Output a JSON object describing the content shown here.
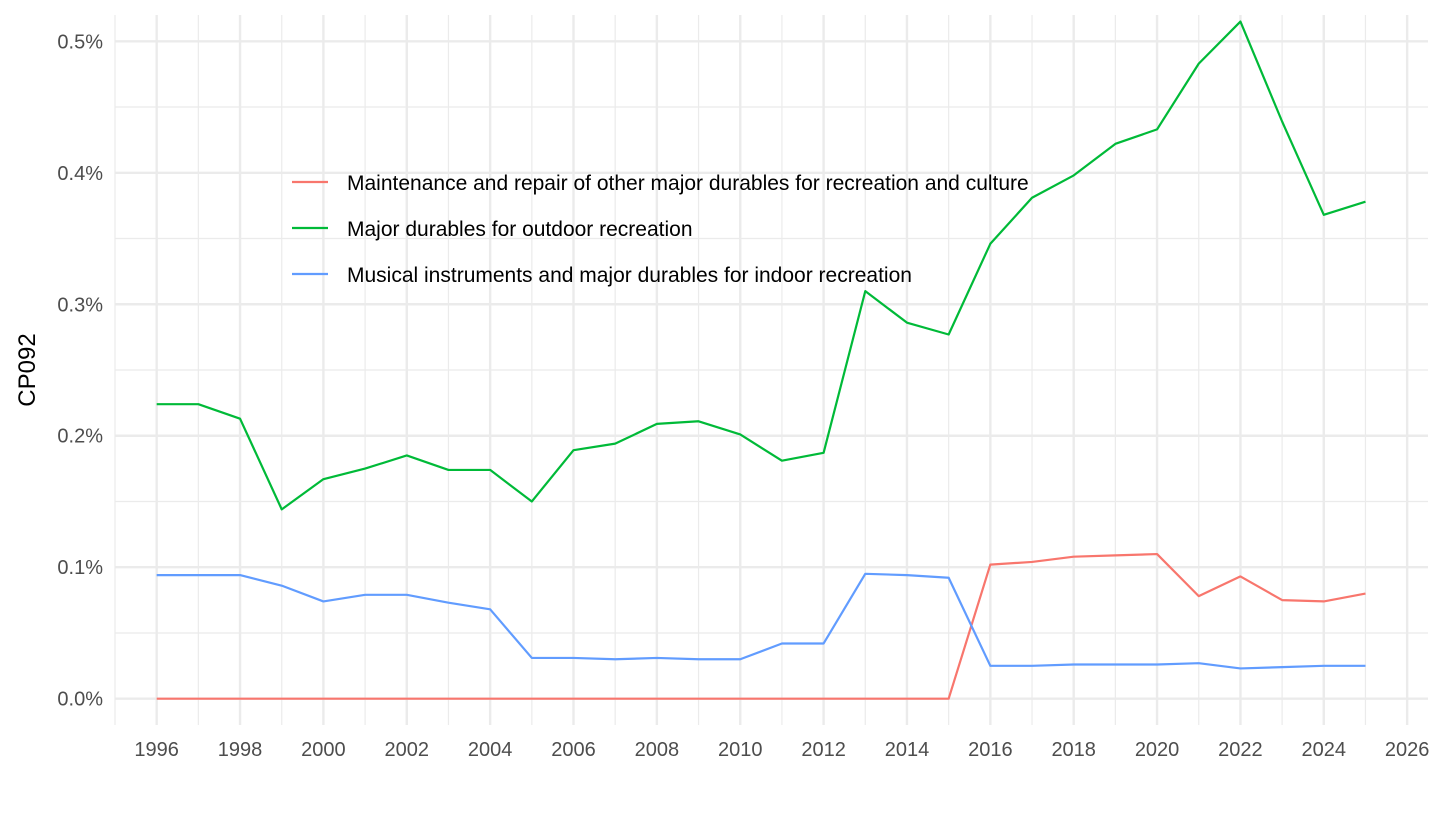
{
  "chart_data": {
    "type": "line",
    "title": "",
    "xlabel": "",
    "ylabel": "CP092",
    "xlim": [
      1995,
      2026.5
    ],
    "ylim": [
      -0.0002,
      0.0052
    ],
    "x_ticks": [
      1996,
      1998,
      2000,
      2002,
      2004,
      2006,
      2008,
      2010,
      2012,
      2014,
      2016,
      2018,
      2020,
      2022,
      2024,
      2026
    ],
    "y_ticks": [
      0,
      0.001,
      0.002,
      0.003,
      0.004,
      0.005
    ],
    "y_tick_labels": [
      "0.0%",
      "0.1%",
      "0.2%",
      "0.3%",
      "0.4%",
      "0.5%"
    ],
    "grid": true,
    "legend_position": "top-center inside plot",
    "x": [
      1996,
      1997,
      1998,
      1999,
      2000,
      2001,
      2002,
      2003,
      2004,
      2005,
      2006,
      2007,
      2008,
      2009,
      2010,
      2011,
      2012,
      2013,
      2014,
      2015,
      2016,
      2017,
      2018,
      2019,
      2020,
      2021,
      2022,
      2023,
      2024,
      2025
    ],
    "series": [
      {
        "name": "Maintenance and repair of other major durables for recreation and culture",
        "color": "#F8766D",
        "values": [
          0,
          0,
          0,
          0,
          0,
          0,
          0,
          0,
          0,
          0,
          0,
          0,
          0,
          0,
          0,
          0,
          0,
          0,
          0,
          0,
          0.00102,
          0.00104,
          0.00108,
          0.00109,
          0.0011,
          0.00078,
          0.00093,
          0.00075,
          0.00074,
          0.0008
        ]
      },
      {
        "name": "Major durables for outdoor recreation",
        "color": "#00BA38",
        "values": [
          0.00224,
          0.00224,
          0.00213,
          0.00144,
          0.00167,
          0.00175,
          0.00185,
          0.00174,
          0.00174,
          0.0015,
          0.00189,
          0.00194,
          0.00209,
          0.00211,
          0.00201,
          0.00181,
          0.00187,
          0.0031,
          0.00286,
          0.00277,
          0.00346,
          0.00381,
          0.00398,
          0.00422,
          0.00433,
          0.00483,
          0.00515,
          0.00439,
          0.00368,
          0.00378
        ]
      },
      {
        "name": "Musical instruments and major durables for indoor recreation",
        "color": "#619CFF",
        "values": [
          0.00094,
          0.00094,
          0.00094,
          0.00086,
          0.00074,
          0.00079,
          0.00079,
          0.00073,
          0.00068,
          0.00031,
          0.00031,
          0.0003,
          0.00031,
          0.0003,
          0.0003,
          0.00042,
          0.00042,
          0.00095,
          0.00094,
          0.00092,
          0.00025,
          0.00025,
          0.00026,
          0.00026,
          0.00026,
          0.00027,
          0.00023,
          0.00024,
          0.00025,
          0.00025
        ]
      }
    ]
  }
}
